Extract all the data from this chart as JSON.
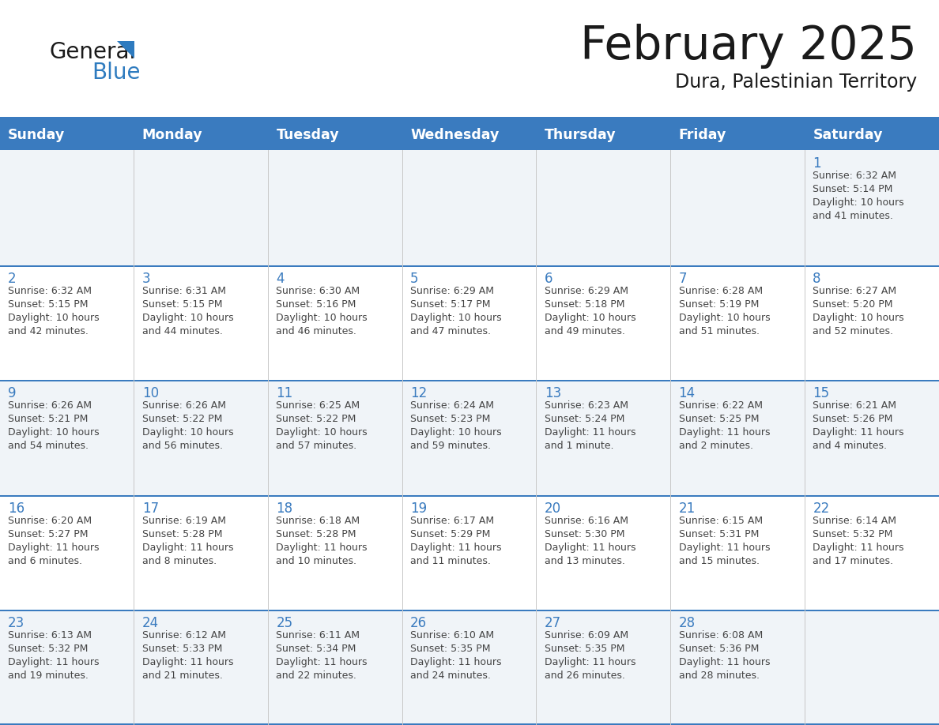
{
  "title": "February 2025",
  "subtitle": "Dura, Palestinian Territory",
  "days_of_week": [
    "Sunday",
    "Monday",
    "Tuesday",
    "Wednesday",
    "Thursday",
    "Friday",
    "Saturday"
  ],
  "header_bg": "#3a7bbf",
  "header_text": "#ffffff",
  "cell_bg_odd": "#f0f4f8",
  "cell_bg_even": "#ffffff",
  "divider_color": "#3a7bbf",
  "day_number_color": "#3a7bbf",
  "text_color": "#444444",
  "calendar_data": [
    [
      {
        "day": null,
        "sunrise": null,
        "sunset": null,
        "daylight": null
      },
      {
        "day": null,
        "sunrise": null,
        "sunset": null,
        "daylight": null
      },
      {
        "day": null,
        "sunrise": null,
        "sunset": null,
        "daylight": null
      },
      {
        "day": null,
        "sunrise": null,
        "sunset": null,
        "daylight": null
      },
      {
        "day": null,
        "sunrise": null,
        "sunset": null,
        "daylight": null
      },
      {
        "day": null,
        "sunrise": null,
        "sunset": null,
        "daylight": null
      },
      {
        "day": 1,
        "sunrise": "6:32 AM",
        "sunset": "5:14 PM",
        "daylight": "10 hours and 41 minutes."
      }
    ],
    [
      {
        "day": 2,
        "sunrise": "6:32 AM",
        "sunset": "5:15 PM",
        "daylight": "10 hours and 42 minutes."
      },
      {
        "day": 3,
        "sunrise": "6:31 AM",
        "sunset": "5:15 PM",
        "daylight": "10 hours and 44 minutes."
      },
      {
        "day": 4,
        "sunrise": "6:30 AM",
        "sunset": "5:16 PM",
        "daylight": "10 hours and 46 minutes."
      },
      {
        "day": 5,
        "sunrise": "6:29 AM",
        "sunset": "5:17 PM",
        "daylight": "10 hours and 47 minutes."
      },
      {
        "day": 6,
        "sunrise": "6:29 AM",
        "sunset": "5:18 PM",
        "daylight": "10 hours and 49 minutes."
      },
      {
        "day": 7,
        "sunrise": "6:28 AM",
        "sunset": "5:19 PM",
        "daylight": "10 hours and 51 minutes."
      },
      {
        "day": 8,
        "sunrise": "6:27 AM",
        "sunset": "5:20 PM",
        "daylight": "10 hours and 52 minutes."
      }
    ],
    [
      {
        "day": 9,
        "sunrise": "6:26 AM",
        "sunset": "5:21 PM",
        "daylight": "10 hours and 54 minutes."
      },
      {
        "day": 10,
        "sunrise": "6:26 AM",
        "sunset": "5:22 PM",
        "daylight": "10 hours and 56 minutes."
      },
      {
        "day": 11,
        "sunrise": "6:25 AM",
        "sunset": "5:22 PM",
        "daylight": "10 hours and 57 minutes."
      },
      {
        "day": 12,
        "sunrise": "6:24 AM",
        "sunset": "5:23 PM",
        "daylight": "10 hours and 59 minutes."
      },
      {
        "day": 13,
        "sunrise": "6:23 AM",
        "sunset": "5:24 PM",
        "daylight": "11 hours and 1 minute."
      },
      {
        "day": 14,
        "sunrise": "6:22 AM",
        "sunset": "5:25 PM",
        "daylight": "11 hours and 2 minutes."
      },
      {
        "day": 15,
        "sunrise": "6:21 AM",
        "sunset": "5:26 PM",
        "daylight": "11 hours and 4 minutes."
      }
    ],
    [
      {
        "day": 16,
        "sunrise": "6:20 AM",
        "sunset": "5:27 PM",
        "daylight": "11 hours and 6 minutes."
      },
      {
        "day": 17,
        "sunrise": "6:19 AM",
        "sunset": "5:28 PM",
        "daylight": "11 hours and 8 minutes."
      },
      {
        "day": 18,
        "sunrise": "6:18 AM",
        "sunset": "5:28 PM",
        "daylight": "11 hours and 10 minutes."
      },
      {
        "day": 19,
        "sunrise": "6:17 AM",
        "sunset": "5:29 PM",
        "daylight": "11 hours and 11 minutes."
      },
      {
        "day": 20,
        "sunrise": "6:16 AM",
        "sunset": "5:30 PM",
        "daylight": "11 hours and 13 minutes."
      },
      {
        "day": 21,
        "sunrise": "6:15 AM",
        "sunset": "5:31 PM",
        "daylight": "11 hours and 15 minutes."
      },
      {
        "day": 22,
        "sunrise": "6:14 AM",
        "sunset": "5:32 PM",
        "daylight": "11 hours and 17 minutes."
      }
    ],
    [
      {
        "day": 23,
        "sunrise": "6:13 AM",
        "sunset": "5:32 PM",
        "daylight": "11 hours and 19 minutes."
      },
      {
        "day": 24,
        "sunrise": "6:12 AM",
        "sunset": "5:33 PM",
        "daylight": "11 hours and 21 minutes."
      },
      {
        "day": 25,
        "sunrise": "6:11 AM",
        "sunset": "5:34 PM",
        "daylight": "11 hours and 22 minutes."
      },
      {
        "day": 26,
        "sunrise": "6:10 AM",
        "sunset": "5:35 PM",
        "daylight": "11 hours and 24 minutes."
      },
      {
        "day": 27,
        "sunrise": "6:09 AM",
        "sunset": "5:35 PM",
        "daylight": "11 hours and 26 minutes."
      },
      {
        "day": 28,
        "sunrise": "6:08 AM",
        "sunset": "5:36 PM",
        "daylight": "11 hours and 28 minutes."
      },
      {
        "day": null,
        "sunrise": null,
        "sunset": null,
        "daylight": null
      }
    ]
  ]
}
